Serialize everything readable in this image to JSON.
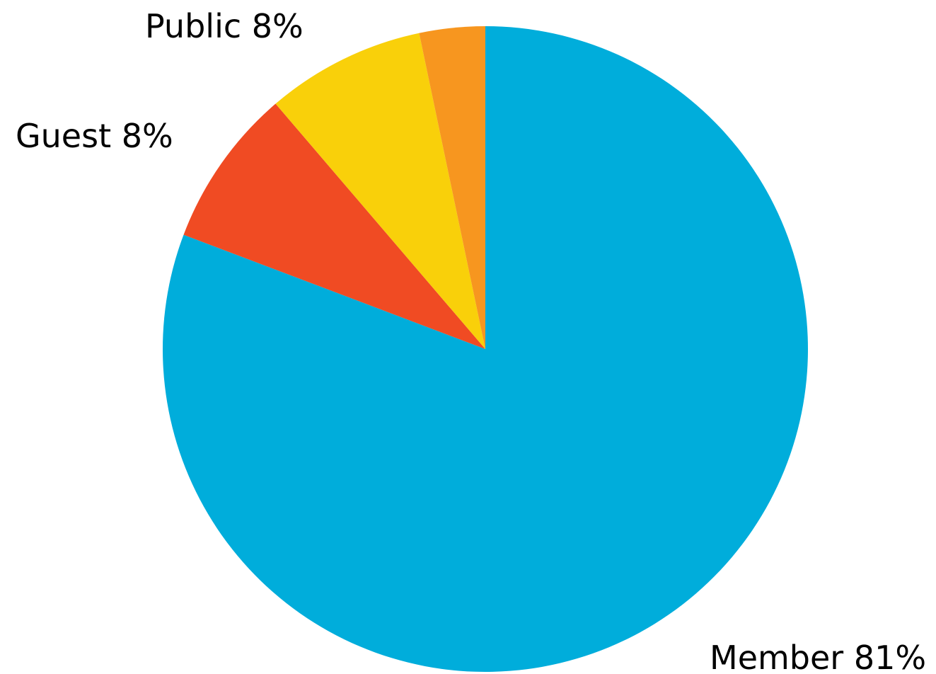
{
  "chart_data": {
    "type": "pie",
    "start_angle": "12 o'clock",
    "direction": "clockwise",
    "legend": "none",
    "slices": [
      {
        "name": "Member",
        "value": 81,
        "label": "Member 81%",
        "color": "#00ADDB"
      },
      {
        "name": "Guest",
        "value": 8,
        "label": "Guest 8%",
        "color": "#F04B23"
      },
      {
        "name": "Public",
        "value": 8,
        "label": "Public 8%",
        "color": "#F9D00A"
      },
      {
        "name": "",
        "value": 3.3,
        "label": "",
        "color": "#F7961F"
      }
    ]
  }
}
